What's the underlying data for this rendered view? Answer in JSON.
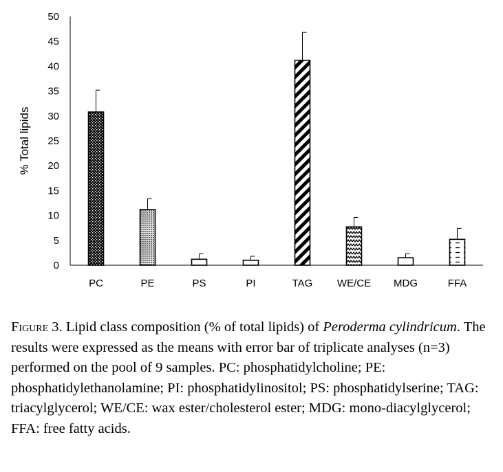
{
  "chart_data": {
    "type": "bar",
    "title": "",
    "xlabel": "",
    "ylabel": "% Total lipids",
    "ylim": [
      0,
      50
    ],
    "yticks": [
      0,
      5,
      10,
      15,
      20,
      25,
      30,
      35,
      40,
      45,
      50
    ],
    "grid": false,
    "categories": [
      "PC",
      "PE",
      "PS",
      "PI",
      "TAG",
      "WE/CE",
      "MDG",
      "FFA"
    ],
    "values": [
      30.8,
      11.2,
      1.2,
      1.0,
      41.2,
      7.7,
      1.5,
      5.2
    ],
    "errors": [
      4.4,
      2.2,
      1.1,
      0.8,
      5.6,
      1.9,
      0.8,
      2.2
    ],
    "fill_patterns": [
      "checker-dark",
      "dots",
      "none",
      "none",
      "diagonal-stripes",
      "zigzag",
      "none",
      "dashes"
    ],
    "colors": {
      "bar_stroke": "#000000",
      "pattern": "#000000",
      "background": "#ffffff"
    }
  },
  "caption": {
    "figure_label": "Figure 3.",
    "text_before_italic": " Lipid class composition (% of total lipids) of ",
    "italic_species": "Peroderma cylindricum",
    "text_after_italic": ". The results were expressed as the means with error bar of triplicate analyses (n=3) performed on the pool of 9 samples. PC: phosphatidylcholine; PE: phosphatidylethanolamine; PI: phosphatidylinositol; PS: phosphatidylserine; TAG: triacylglycerol; WE/CE: wax ester/cholesterol ester; MDG: mono-diacylglycerol; FFA: free fatty acids."
  }
}
